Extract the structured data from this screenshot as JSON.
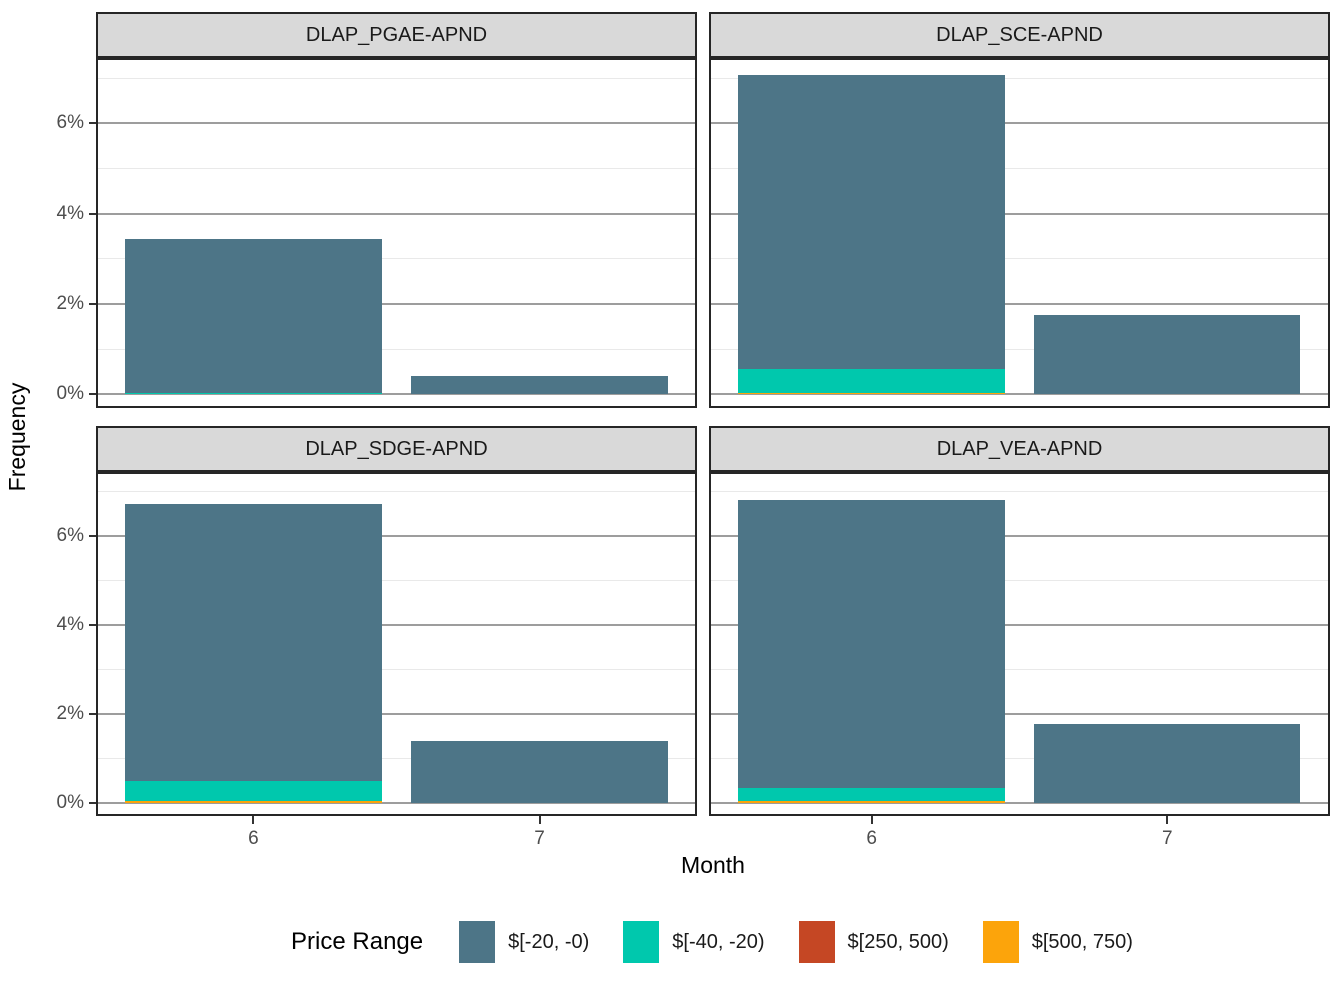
{
  "chart_data": {
    "type": "bar",
    "stacked": true,
    "xlabel": "Month",
    "ylabel": "Frequency",
    "x_ticks": [
      "6",
      "7"
    ],
    "y_tick_labels": [
      "0%",
      "2%",
      "4%",
      "6%"
    ],
    "y_major": [
      0,
      2,
      4,
      6
    ],
    "y_minor": [
      1,
      3,
      5,
      7
    ],
    "ylim": [
      -0.3,
      7.45
    ],
    "y_unit": "percent",
    "grid": "major-and-minor",
    "facets": [
      {
        "title": "DLAP_PGAE-APND",
        "bars": [
          {
            "month": "6",
            "total": 3.44,
            "segments": [
              {
                "range": "$[-40, -20)",
                "value": 0.04
              },
              {
                "range": "$[-20, -0)",
                "value": 3.4
              }
            ]
          },
          {
            "month": "7",
            "total": 0.4,
            "segments": [
              {
                "range": "$[-20, -0)",
                "value": 0.4
              }
            ]
          }
        ]
      },
      {
        "title": "DLAP_SCE-APND",
        "bars": [
          {
            "month": "6",
            "total": 7.07,
            "segments": [
              {
                "range": "$[500, 750)",
                "value": 0.04
              },
              {
                "range": "$[-40, -20)",
                "value": 0.52
              },
              {
                "range": "$[-20, -0)",
                "value": 6.51
              }
            ]
          },
          {
            "month": "7",
            "total": 1.76,
            "segments": [
              {
                "range": "$[-20, -0)",
                "value": 1.76
              }
            ]
          }
        ]
      },
      {
        "title": "DLAP_SDGE-APND",
        "bars": [
          {
            "month": "6",
            "total": 6.73,
            "segments": [
              {
                "range": "$[500, 750)",
                "value": 0.03
              },
              {
                "range": "$[-40, -20)",
                "value": 0.45
              },
              {
                "range": "$[-20, -0)",
                "value": 6.25
              }
            ]
          },
          {
            "month": "7",
            "total": 1.38,
            "segments": [
              {
                "range": "$[-20, -0)",
                "value": 1.38
              }
            ]
          }
        ]
      },
      {
        "title": "DLAP_VEA-APND",
        "bars": [
          {
            "month": "6",
            "total": 6.83,
            "segments": [
              {
                "range": "$[500, 750)",
                "value": 0.04
              },
              {
                "range": "$[-40, -20)",
                "value": 0.29
              },
              {
                "range": "$[-20, -0)",
                "value": 6.5
              }
            ]
          },
          {
            "month": "7",
            "total": 1.77,
            "segments": [
              {
                "range": "$[-20, -0)",
                "value": 1.77
              }
            ]
          }
        ]
      }
    ],
    "stack_order_bottom_to_top": [
      "$[500, 750)",
      "$[250, 500)",
      "$[-40, -20)",
      "$[-20, -0)"
    ],
    "legend": {
      "title": "Price Range",
      "position": "bottom",
      "entries": [
        {
          "label": "$[-20, -0)",
          "color": "#4d7587"
        },
        {
          "label": "$[-40, -20)",
          "color": "#00c8ad"
        },
        {
          "label": "$[250, 500)",
          "color": "#c54724"
        },
        {
          "label": "$[500, 750)",
          "color": "#fca40b"
        }
      ]
    }
  },
  "colors": {
    "background": "#ffffff",
    "strip_bg": "#d9d9d9",
    "panel_border": "#262626",
    "grid_major": "#9d9d9d",
    "grid_minor": "#e9e9e9",
    "tick_text": "#4d4d4d",
    "title_text": "#000000"
  }
}
